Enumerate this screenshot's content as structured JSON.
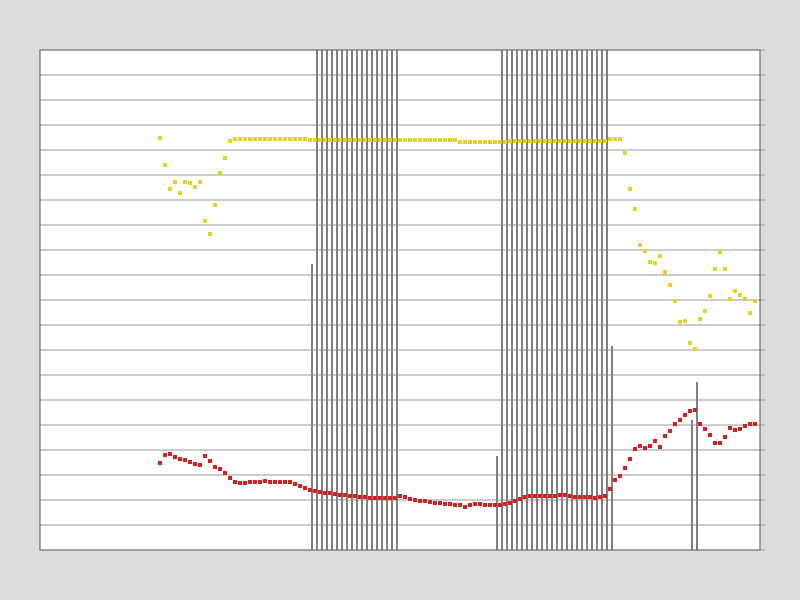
{
  "chart_data": {
    "type": "scatter",
    "xlim": [
      0,
      144
    ],
    "ylim": [
      0,
      20
    ],
    "yticks": [
      0,
      1,
      2,
      3,
      4,
      5,
      6,
      7,
      8,
      9,
      10,
      11,
      12,
      13,
      14,
      15,
      16,
      17,
      18,
      19,
      20
    ],
    "grid": true,
    "series": [
      {
        "type": "bar",
        "color": "#808080",
        "x": [
          54.4,
          55.4,
          56.4,
          57.4,
          58.4,
          59.4,
          60.4,
          61.4,
          62.4,
          63.4,
          64.4,
          65.4,
          66.4,
          67.4,
          68.4,
          69.4,
          70.4,
          71.4,
          91.4,
          92.4,
          93.4,
          94.4,
          95.4,
          96.4,
          97.4,
          98.4,
          99.4,
          100.4,
          101.4,
          102.4,
          103.4,
          104.4,
          105.4,
          106.4,
          107.4,
          108.4,
          109.4,
          110.4,
          111.4,
          112.4,
          113.4,
          114.4,
          130.4,
          131.4
        ],
        "values": [
          11.44,
          20,
          20,
          20,
          20,
          20,
          20,
          20,
          20,
          20,
          20,
          20,
          20,
          20,
          20,
          20,
          20,
          20,
          3.76,
          20,
          20,
          20,
          20,
          20,
          20,
          20,
          20,
          20,
          20,
          20,
          20,
          20,
          20,
          20,
          20,
          20,
          20,
          20,
          20,
          20,
          20,
          8.16,
          5.2,
          6.72
        ]
      },
      {
        "type": "scatter",
        "color": "#e8d020",
        "x": [
          24,
          25,
          26,
          27,
          28,
          29,
          30,
          31,
          32,
          33,
          34,
          35,
          36,
          37,
          38,
          39,
          40,
          41,
          42,
          43,
          44,
          45,
          46,
          47,
          48,
          49,
          50,
          51,
          52,
          53,
          54,
          55,
          56,
          57,
          58,
          59,
          60,
          61,
          62,
          63,
          64,
          65,
          66,
          67,
          68,
          69,
          70,
          71,
          72,
          73,
          74,
          75,
          76,
          77,
          78,
          79,
          80,
          81,
          82,
          83,
          84,
          85,
          86,
          87,
          88,
          89,
          90,
          91,
          92,
          93,
          94,
          95,
          96,
          97,
          98,
          99,
          100,
          101,
          102,
          103,
          104,
          105,
          106,
          107,
          108,
          109,
          110,
          111,
          112,
          113,
          114,
          115,
          116,
          117,
          118,
          119,
          120,
          121,
          122,
          123,
          124,
          125,
          126,
          127,
          128,
          129,
          130,
          131,
          132,
          133,
          134,
          135,
          136,
          137,
          138,
          139,
          140,
          141,
          142,
          143
        ],
        "values": [
          16.48,
          15.4,
          14.44,
          14.72,
          14.28,
          14.72,
          14.68,
          14.52,
          14.72,
          13.16,
          12.64,
          13.8,
          15.08,
          15.68,
          16.36,
          16.44,
          16.44,
          16.44,
          16.44,
          16.44,
          16.44,
          16.44,
          16.44,
          16.44,
          16.44,
          16.44,
          16.44,
          16.44,
          16.44,
          16.44,
          16.4,
          16.4,
          16.4,
          16.4,
          16.4,
          16.4,
          16.4,
          16.4,
          16.4,
          16.4,
          16.4,
          16.4,
          16.4,
          16.4,
          16.4,
          16.4,
          16.4,
          16.4,
          16.4,
          16.4,
          16.4,
          16.4,
          16.4,
          16.4,
          16.4,
          16.4,
          16.4,
          16.4,
          16.4,
          16.4,
          16.32,
          16.32,
          16.32,
          16.32,
          16.32,
          16.32,
          16.32,
          16.32,
          16.32,
          16.32,
          16.36,
          16.36,
          16.36,
          16.36,
          16.36,
          16.36,
          16.36,
          16.36,
          16.36,
          16.36,
          16.36,
          16.36,
          16.36,
          16.36,
          16.36,
          16.36,
          16.36,
          16.36,
          16.36,
          16.36,
          16.44,
          16.44,
          16.44,
          15.88,
          14.44,
          13.64,
          12.2,
          11.96,
          11.52,
          11.48,
          11.76,
          11.12,
          10.6,
          9.96,
          9.12,
          9.16,
          8.28,
          8.04,
          9.24,
          9.56,
          10.16,
          11.24,
          11.92,
          11.24,
          10.04,
          10.36,
          10.2,
          10.04,
          9.48,
          9.96
        ]
      },
      {
        "type": "scatter",
        "color": "#d42020",
        "x": [
          24,
          25,
          26,
          27,
          28,
          29,
          30,
          31,
          32,
          33,
          34,
          35,
          36,
          37,
          38,
          39,
          40,
          41,
          42,
          43,
          44,
          45,
          46,
          47,
          48,
          49,
          50,
          51,
          52,
          53,
          54,
          55,
          56,
          57,
          58,
          59,
          60,
          61,
          62,
          63,
          64,
          65,
          66,
          67,
          68,
          69,
          70,
          71,
          72,
          73,
          74,
          75,
          76,
          77,
          78,
          79,
          80,
          81,
          82,
          83,
          84,
          85,
          86,
          87,
          88,
          89,
          90,
          91,
          92,
          93,
          94,
          95,
          96,
          97,
          98,
          99,
          100,
          101,
          102,
          103,
          104,
          105,
          106,
          107,
          108,
          109,
          110,
          111,
          112,
          113,
          114,
          115,
          116,
          117,
          118,
          119,
          120,
          121,
          122,
          123,
          124,
          125,
          126,
          127,
          128,
          129,
          130,
          131,
          132,
          133,
          134,
          135,
          136,
          137,
          138,
          139,
          140,
          141,
          142,
          143
        ],
        "values": [
          3.48,
          3.8,
          3.84,
          3.72,
          3.64,
          3.6,
          3.52,
          3.44,
          3.4,
          3.76,
          3.56,
          3.32,
          3.24,
          3.08,
          2.88,
          2.72,
          2.68,
          2.68,
          2.72,
          2.72,
          2.72,
          2.76,
          2.72,
          2.72,
          2.72,
          2.72,
          2.72,
          2.64,
          2.56,
          2.48,
          2.4,
          2.36,
          2.32,
          2.28,
          2.28,
          2.24,
          2.2,
          2.2,
          2.16,
          2.16,
          2.12,
          2.12,
          2.08,
          2.08,
          2.08,
          2.08,
          2.08,
          2.08,
          2.16,
          2.12,
          2.04,
          2,
          1.96,
          1.96,
          1.92,
          1.88,
          1.88,
          1.84,
          1.84,
          1.8,
          1.8,
          1.72,
          1.8,
          1.84,
          1.84,
          1.8,
          1.8,
          1.8,
          1.8,
          1.84,
          1.88,
          1.96,
          2.04,
          2.12,
          2.16,
          2.16,
          2.16,
          2.16,
          2.16,
          2.16,
          2.2,
          2.2,
          2.16,
          2.12,
          2.12,
          2.12,
          2.12,
          2.08,
          2.12,
          2.16,
          2.44,
          2.8,
          2.96,
          3.28,
          3.64,
          4.04,
          4.16,
          4.08,
          4.16,
          4.36,
          4.12,
          4.56,
          4.76,
          5.04,
          5.2,
          5.4,
          5.56,
          5.6,
          5.04,
          4.84,
          4.6,
          4.28,
          4.28,
          4.52,
          4.88,
          4.8,
          4.84,
          4.96,
          5.04,
          5.04
        ]
      }
    ]
  }
}
